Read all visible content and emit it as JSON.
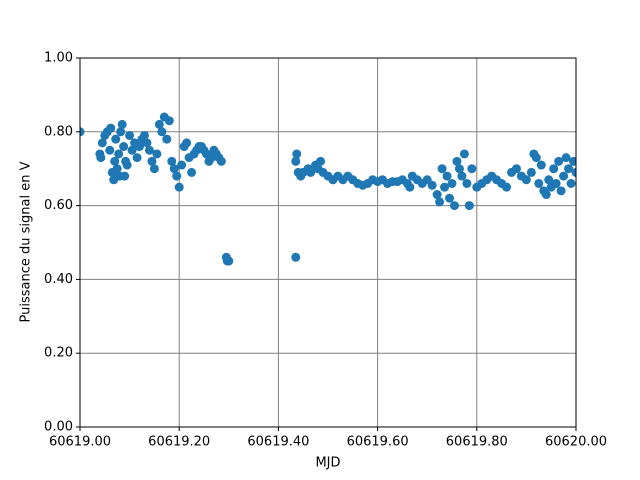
{
  "chart_data": {
    "type": "scatter",
    "x_label": "MJD",
    "y_label": "Puissance du signal en V",
    "color": "#1f77b4",
    "grid": true,
    "xlim": [
      60619.0,
      60620.0
    ],
    "xticks": [
      {
        "value": 60619.0,
        "label": "60619.00"
      },
      {
        "value": 60619.2,
        "label": "60619.20"
      },
      {
        "value": 60619.4,
        "label": "60619.40"
      },
      {
        "value": 60619.6,
        "label": "60619.60"
      },
      {
        "value": 60619.8,
        "label": "60619.80"
      },
      {
        "value": 60620.0,
        "label": "60620.00"
      }
    ],
    "ylim": [
      0,
      1
    ],
    "yticks": [
      {
        "value": 0,
        "label": "0.00"
      },
      {
        "value": 0.2,
        "label": "0.20"
      },
      {
        "value": 0.4,
        "label": "0.40"
      },
      {
        "value": 0.6,
        "label": "0.60"
      },
      {
        "value": 0.8,
        "label": "0.80"
      },
      {
        "value": 1,
        "label": "1.00"
      }
    ],
    "x": [
      60619.0,
      60619.04,
      60619.042,
      60619.045,
      60619.05,
      60619.055,
      60619.06,
      60619.062,
      60619.065,
      60619.068,
      60619.07,
      60619.072,
      60619.075,
      60619.078,
      60619.08,
      60619.082,
      60619.085,
      60619.088,
      60619.09,
      60619.092,
      60619.095,
      60619.1,
      60619.105,
      60619.11,
      60619.115,
      60619.12,
      60619.125,
      60619.13,
      60619.135,
      60619.14,
      60619.145,
      60619.15,
      60619.155,
      60619.16,
      60619.165,
      60619.17,
      60619.175,
      60619.18,
      60619.185,
      60619.19,
      60619.195,
      60619.2,
      60619.205,
      60619.21,
      60619.215,
      60619.22,
      60619.225,
      60619.23,
      60619.235,
      60619.24,
      60619.245,
      60619.25,
      60619.255,
      60619.26,
      60619.265,
      60619.27,
      60619.275,
      60619.28,
      60619.285,
      60619.295,
      60619.297,
      60619.3,
      60619.435,
      60619.435,
      60619.437,
      60619.44,
      60619.445,
      60619.45,
      60619.46,
      60619.465,
      60619.47,
      60619.475,
      60619.48,
      60619.485,
      60619.49,
      60619.5,
      60619.51,
      60619.52,
      60619.53,
      60619.54,
      60619.55,
      60619.56,
      60619.57,
      60619.58,
      60619.59,
      60619.6,
      60619.61,
      60619.62,
      60619.63,
      60619.64,
      60619.65,
      60619.66,
      60619.665,
      60619.67,
      60619.68,
      60619.69,
      60619.7,
      60619.71,
      60619.72,
      60619.725,
      60619.73,
      60619.735,
      60619.74,
      60619.745,
      60619.75,
      60619.755,
      60619.76,
      60619.765,
      60619.77,
      60619.775,
      60619.78,
      60619.785,
      60619.79,
      60619.8,
      60619.81,
      60619.82,
      60619.83,
      60619.84,
      60619.85,
      60619.86,
      60619.87,
      60619.88,
      60619.89,
      60619.9,
      60619.91,
      60619.915,
      60619.92,
      60619.925,
      60619.93,
      60619.935,
      60619.94,
      60619.945,
      60619.95,
      60619.955,
      60619.96,
      60619.965,
      60619.97,
      60619.975,
      60619.98,
      60619.985,
      60619.99,
      60619.995,
      60620.0
    ],
    "values": [
      0.8,
      0.74,
      0.73,
      0.77,
      0.79,
      0.8,
      0.75,
      0.81,
      0.69,
      0.67,
      0.72,
      0.78,
      0.7,
      0.74,
      0.68,
      0.8,
      0.82,
      0.76,
      0.68,
      0.72,
      0.71,
      0.79,
      0.75,
      0.77,
      0.73,
      0.76,
      0.78,
      0.79,
      0.77,
      0.75,
      0.72,
      0.7,
      0.74,
      0.82,
      0.8,
      0.84,
      0.78,
      0.83,
      0.72,
      0.7,
      0.68,
      0.65,
      0.71,
      0.76,
      0.77,
      0.73,
      0.69,
      0.74,
      0.75,
      0.76,
      0.76,
      0.75,
      0.74,
      0.72,
      0.73,
      0.75,
      0.74,
      0.73,
      0.72,
      0.46,
      0.45,
      0.45,
      0.46,
      0.72,
      0.74,
      0.69,
      0.68,
      0.69,
      0.7,
      0.69,
      0.7,
      0.71,
      0.7,
      0.72,
      0.69,
      0.68,
      0.67,
      0.68,
      0.67,
      0.68,
      0.67,
      0.66,
      0.655,
      0.66,
      0.67,
      0.665,
      0.67,
      0.66,
      0.665,
      0.665,
      0.67,
      0.66,
      0.65,
      0.68,
      0.67,
      0.66,
      0.67,
      0.655,
      0.63,
      0.61,
      0.7,
      0.65,
      0.68,
      0.62,
      0.66,
      0.6,
      0.72,
      0.7,
      0.68,
      0.74,
      0.66,
      0.6,
      0.7,
      0.65,
      0.66,
      0.67,
      0.68,
      0.67,
      0.66,
      0.65,
      0.69,
      0.7,
      0.68,
      0.67,
      0.69,
      0.74,
      0.73,
      0.66,
      0.71,
      0.64,
      0.63,
      0.67,
      0.65,
      0.7,
      0.66,
      0.72,
      0.64,
      0.68,
      0.73,
      0.7,
      0.66,
      0.72,
      0.69
    ]
  }
}
